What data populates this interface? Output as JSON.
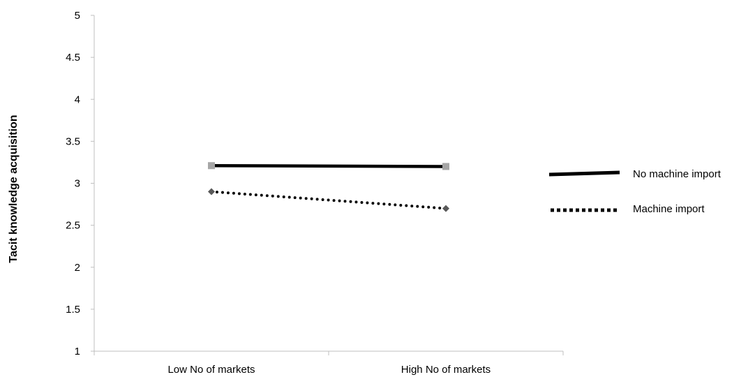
{
  "chart_data": {
    "type": "line",
    "title": "",
    "xlabel": "",
    "ylabel": "Tacit knowledge acquisition",
    "categories": [
      "Low No of markets",
      "High No of markets"
    ],
    "ylim": [
      1,
      5
    ],
    "yticks": [
      "1",
      "1.5",
      "2",
      "2.5",
      "3",
      "3.5",
      "4",
      "4.5",
      "5"
    ],
    "grid": false,
    "legend_position": "right",
    "series": [
      {
        "name": "No machine import",
        "values": [
          3.21,
          3.2
        ],
        "line_style": "solid",
        "color": "#000000",
        "marker": "square",
        "marker_color": "#a6a6a6"
      },
      {
        "name": "Machine import",
        "values": [
          2.9,
          2.7
        ],
        "line_style": "dotted",
        "color": "#000000",
        "marker": "diamond",
        "marker_color": "#595959"
      }
    ]
  }
}
